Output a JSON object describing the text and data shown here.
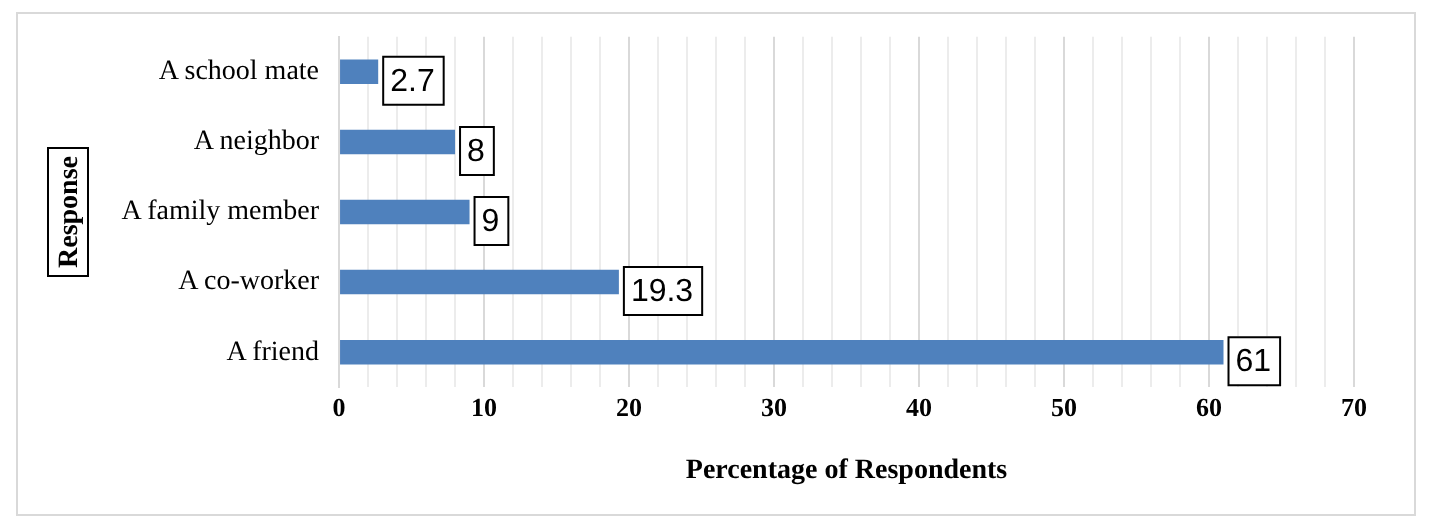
{
  "chart_data": {
    "type": "bar",
    "orientation": "horizontal",
    "xlabel": "Percentage of Respondents",
    "ylabel": "Response",
    "categories": [
      "A school mate",
      "A neighbor",
      "A family member",
      "A co-worker",
      "A friend"
    ],
    "values": [
      2.7,
      8,
      9,
      19.3,
      61
    ],
    "color": "#4f81bd",
    "data_labels": true,
    "xlim": [
      0,
      70
    ],
    "xticks": [
      0,
      {
        "value": 2,
        "label": null
      },
      {
        "value": 4,
        "label": null
      },
      {
        "value": 6,
        "label": null
      },
      {
        "value": 8,
        "label": null
      },
      10,
      {
        "value": 12,
        "label": null
      },
      {
        "value": 14,
        "label": null
      },
      {
        "value": 16,
        "label": null
      },
      {
        "value": 18,
        "label": null
      },
      20,
      {
        "value": 22,
        "label": null
      },
      {
        "value": 24,
        "label": null
      },
      {
        "value": 26,
        "label": null
      },
      {
        "value": 28,
        "label": null
      },
      30,
      {
        "value": 32,
        "label": null
      },
      {
        "value": 34,
        "label": null
      },
      {
        "value": 36,
        "label": null
      },
      {
        "value": 38,
        "label": null
      },
      40,
      {
        "value": 42,
        "label": null
      },
      {
        "value": 44,
        "label": null
      },
      {
        "value": 46,
        "label": null
      },
      {
        "value": 48,
        "label": null
      },
      50,
      {
        "value": 52,
        "label": null
      },
      {
        "value": 54,
        "label": null
      },
      {
        "value": 56,
        "label": null
      },
      {
        "value": 58,
        "label": null
      },
      60,
      {
        "value": 62,
        "label": null
      },
      {
        "value": 64,
        "label": null
      },
      {
        "value": 66,
        "label": null
      },
      {
        "value": 68,
        "label": null
      },
      70
    ],
    "grid": "x",
    "legend": false
  }
}
